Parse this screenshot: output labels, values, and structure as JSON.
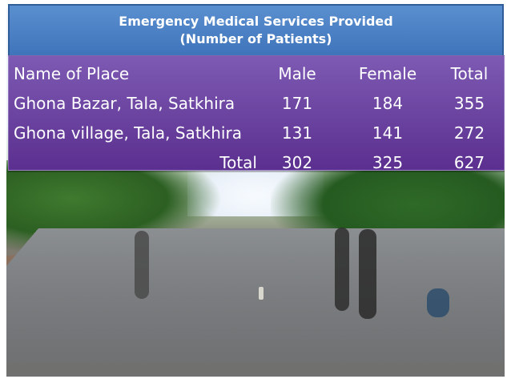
{
  "title": {
    "line1": "Emergency Medical Services Provided",
    "line2": "(Number of Patients)"
  },
  "table": {
    "headers": [
      "Name of Place",
      "Male",
      "Female",
      "Total"
    ],
    "rows": [
      {
        "place": "Ghona Bazar, Tala, Satkhira",
        "male": "171",
        "female": "184",
        "total": "355"
      },
      {
        "place": "Ghona village, Tala, Satkhira",
        "male": "131",
        "female": "141",
        "total": "272"
      }
    ],
    "totals": {
      "label": "Total",
      "male": "302",
      "female": "325",
      "total": "627"
    }
  },
  "colors": {
    "title_bg": "#4f86c6",
    "table_bg": "#6a3fa0"
  }
}
